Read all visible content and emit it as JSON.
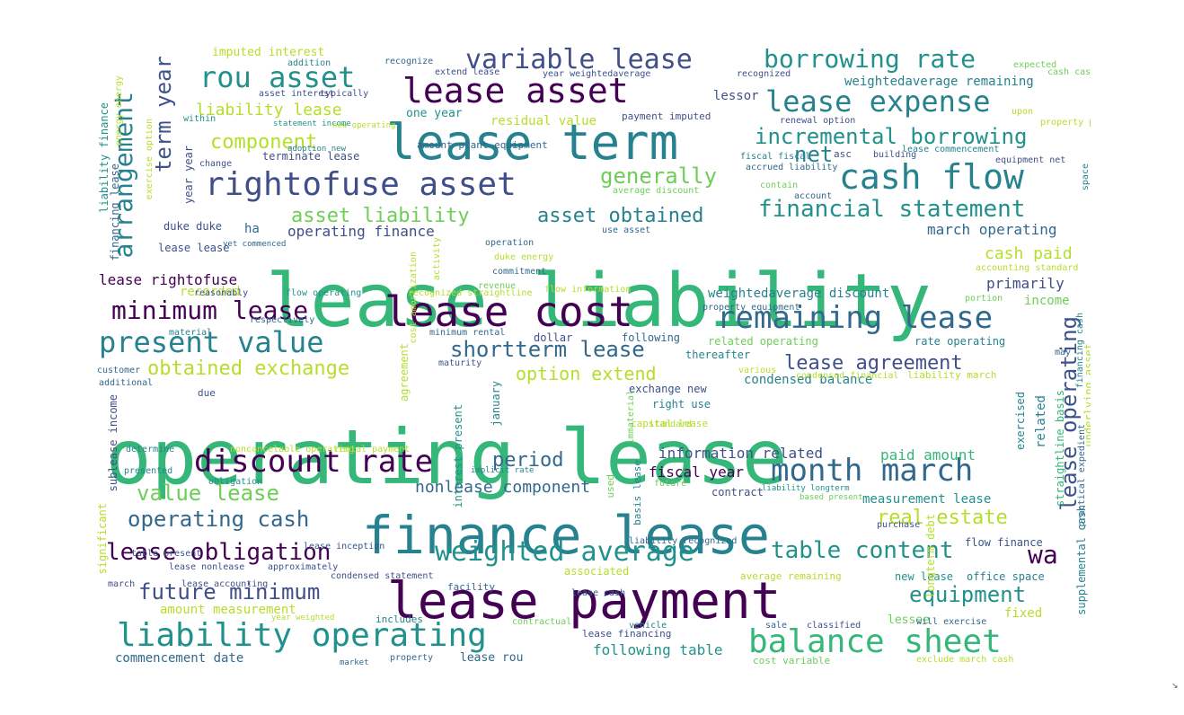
{
  "colors": {
    "dark_purple": "#440154",
    "indigo": "#3b528b",
    "slate_blue": "#404f8a",
    "steel_blue": "#31688e",
    "teal": "#26828e",
    "sea_green": "#21918c",
    "emerald": "#35b779",
    "grass_green": "#6ece58",
    "lime": "#b5de2b",
    "yellow": "#d4e122"
  },
  "words": [
    {
      "text": "operating lease"
    },
    {
      "text": "lease liability"
    },
    {
      "text": "finance lease"
    },
    {
      "text": "lease payment"
    },
    {
      "text": "lease term"
    },
    {
      "text": "lease cost"
    },
    {
      "text": "lease asset"
    },
    {
      "text": "rightofuse asset"
    },
    {
      "text": "cash flow"
    },
    {
      "text": "discount rate"
    },
    {
      "text": "month march"
    },
    {
      "text": "balance sheet"
    },
    {
      "text": "liability operating"
    },
    {
      "text": "remaining lease"
    },
    {
      "text": "present value"
    },
    {
      "text": "lease expense"
    },
    {
      "text": "rou asset"
    },
    {
      "text": "variable lease"
    },
    {
      "text": "borrowing rate"
    },
    {
      "text": "minimum lease"
    },
    {
      "text": "weighted average"
    },
    {
      "text": "lease obligation"
    },
    {
      "text": "future minimum"
    },
    {
      "text": "financial statement"
    },
    {
      "text": "incremental borrowing"
    },
    {
      "text": "shortterm lease"
    },
    {
      "text": "value lease"
    },
    {
      "text": "operating cash"
    },
    {
      "text": "table content"
    },
    {
      "text": "lease agreement"
    },
    {
      "text": "asset liability"
    },
    {
      "text": "asset obtained"
    },
    {
      "text": "generally"
    },
    {
      "text": "obtained exchange"
    },
    {
      "text": "real estate"
    },
    {
      "text": "equipment"
    },
    {
      "text": "period"
    },
    {
      "text": "component"
    },
    {
      "text": "arrangement"
    },
    {
      "text": "term year"
    },
    {
      "text": "lease operating"
    },
    {
      "text": "net"
    },
    {
      "text": "wa"
    },
    {
      "text": "option extend"
    },
    {
      "text": "nonlease component"
    },
    {
      "text": "cash paid"
    },
    {
      "text": "liability lease"
    },
    {
      "text": "march operating"
    },
    {
      "text": "information related"
    },
    {
      "text": "paid amount"
    },
    {
      "text": "fiscal year"
    },
    {
      "text": "primarily"
    },
    {
      "text": "lease rightofuse"
    },
    {
      "text": "operating finance"
    },
    {
      "text": "measurement lease"
    },
    {
      "text": "amount measurement"
    },
    {
      "text": "commencement date"
    },
    {
      "text": "following table"
    },
    {
      "text": "weightedaverage remaining"
    },
    {
      "text": "weightedaverage discount"
    },
    {
      "text": "condensed balance"
    },
    {
      "text": "related operating"
    },
    {
      "text": "rate operating"
    },
    {
      "text": "income"
    },
    {
      "text": "lessor"
    },
    {
      "text": "residual value"
    },
    {
      "text": "one year"
    },
    {
      "text": "imputed interest"
    },
    {
      "text": "terminate lease"
    },
    {
      "text": "recorded"
    },
    {
      "text": "lease lease"
    },
    {
      "text": "duke duke"
    },
    {
      "text": "ha"
    },
    {
      "text": "right use"
    },
    {
      "text": "exchange new"
    },
    {
      "text": "fixed"
    },
    {
      "text": "lessee"
    },
    {
      "text": "flow finance"
    },
    {
      "text": "new lease"
    },
    {
      "text": "office space"
    },
    {
      "text": "lease rou"
    },
    {
      "text": "related"
    },
    {
      "text": "exercised"
    },
    {
      "text": "straightline basis"
    },
    {
      "text": "contract"
    },
    {
      "text": "capital lease"
    },
    {
      "text": "associated"
    },
    {
      "text": "facility"
    },
    {
      "text": "includes"
    },
    {
      "text": "lease financing"
    },
    {
      "text": "cost variable"
    },
    {
      "text": "exclude march cash"
    },
    {
      "text": "approximately"
    },
    {
      "text": "lease nonlease"
    },
    {
      "text": "lease inception"
    },
    {
      "text": "condensed statement"
    },
    {
      "text": "sublease income"
    },
    {
      "text": "liability finance"
    },
    {
      "text": "within"
    },
    {
      "text": "change"
    },
    {
      "text": "asset interest"
    },
    {
      "text": "typically"
    },
    {
      "text": "statement income"
    },
    {
      "text": "recognize"
    },
    {
      "text": "addition"
    },
    {
      "text": "extend lease"
    },
    {
      "text": "year weightedaverage"
    },
    {
      "text": "recognized"
    },
    {
      "text": "payment imputed"
    },
    {
      "text": "amount plant equipment"
    },
    {
      "text": "average discount"
    },
    {
      "text": "renewal option"
    },
    {
      "text": "property plant"
    },
    {
      "text": "lease commencement"
    },
    {
      "text": "equipment net"
    },
    {
      "text": "building"
    },
    {
      "text": "asc"
    },
    {
      "text": "accrued liability"
    },
    {
      "text": "contain"
    },
    {
      "text": "account"
    },
    {
      "text": "expected"
    },
    {
      "text": "use asset"
    },
    {
      "text": "operation"
    },
    {
      "text": "duke energy"
    },
    {
      "text": "commitment"
    },
    {
      "text": "revenue"
    },
    {
      "text": "flow operating"
    },
    {
      "text": "recognized straightline"
    },
    {
      "text": "flow information"
    },
    {
      "text": "reasonably"
    },
    {
      "text": "accounting standard"
    },
    {
      "text": "portion"
    },
    {
      "text": "respectively"
    },
    {
      "text": "material"
    },
    {
      "text": "minimum rental"
    },
    {
      "text": "dollar"
    },
    {
      "text": "following"
    },
    {
      "text": "property equipment"
    },
    {
      "text": "thereafter"
    },
    {
      "text": "customer"
    },
    {
      "text": "additional"
    },
    {
      "text": "maturity"
    },
    {
      "text": "due"
    },
    {
      "text": "liability march"
    },
    {
      "text": "determine"
    },
    {
      "text": "presented"
    },
    {
      "text": "noncancelable operating"
    },
    {
      "text": "rental payment"
    },
    {
      "text": "implicit rate"
    },
    {
      "text": "obligation"
    },
    {
      "text": "standard"
    },
    {
      "text": "future"
    },
    {
      "text": "liability longterm"
    },
    {
      "text": "based present"
    },
    {
      "text": "purchase"
    },
    {
      "text": "liability recognized"
    },
    {
      "text": "table present"
    },
    {
      "text": "lease accounting"
    },
    {
      "text": "march"
    },
    {
      "text": "year weighted"
    },
    {
      "text": "contractual"
    },
    {
      "text": "vehicle"
    },
    {
      "text": "sale"
    },
    {
      "text": "classified"
    },
    {
      "text": "will exercise"
    },
    {
      "text": "market"
    },
    {
      "text": "property"
    },
    {
      "text": "average remaining"
    },
    {
      "text": "condensed financial"
    },
    {
      "text": "may"
    },
    {
      "text": "significant"
    },
    {
      "text": "year year"
    },
    {
      "text": "financing lease"
    },
    {
      "text": "energy energy"
    },
    {
      "text": "exercise option"
    },
    {
      "text": "yet commenced"
    },
    {
      "text": "adoption new"
    },
    {
      "text": "new operating"
    },
    {
      "text": "agreement"
    },
    {
      "text": "interest present"
    },
    {
      "text": "january"
    },
    {
      "text": "immaterial"
    },
    {
      "text": "basis lease"
    },
    {
      "text": "used"
    },
    {
      "text": "longterm debt"
    },
    {
      "text": "underlying asset"
    },
    {
      "text": "supplemental cash"
    },
    {
      "text": "practical expedient"
    },
    {
      "text": "financing cash"
    },
    {
      "text": "space"
    },
    {
      "text": "various"
    },
    {
      "text": "activity"
    },
    {
      "text": "cost amortization"
    },
    {
      "text": "fiscal fiscal"
    },
    {
      "text": "lease cash"
    },
    {
      "text": "upon"
    },
    {
      "text": "cash cash"
    }
  ]
}
